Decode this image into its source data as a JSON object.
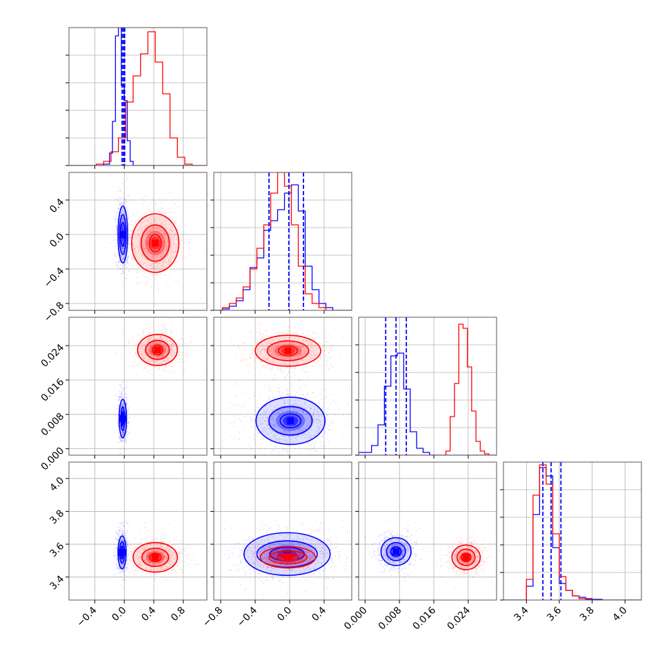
{
  "chart_data": {
    "type": "corner",
    "grid": true,
    "parameters": [
      {
        "ticks": [
          -0.4,
          0.0,
          0.4,
          0.8
        ],
        "tick_labels": [
          "−0.4",
          "0.0",
          "0.4",
          "0.8"
        ],
        "range": [
          -0.75,
          1.12
        ]
      },
      {
        "ticks": [
          -0.8,
          -0.4,
          0.0,
          0.4
        ],
        "tick_labels": [
          "−0.8",
          "−0.4",
          "0.0",
          "0.4"
        ],
        "range": [
          -0.88,
          0.72
        ]
      },
      {
        "ticks": [
          0.0,
          0.008,
          0.016,
          0.024
        ],
        "tick_labels": [
          "0.000",
          "0.008",
          "0.016",
          "0.024"
        ],
        "range": [
          -0.0015,
          0.0306
        ]
      },
      {
        "ticks": [
          3.4,
          3.6,
          3.8,
          4.0
        ],
        "tick_labels": [
          "3.4",
          "3.6",
          "3.8",
          "4.0"
        ],
        "range": [
          3.26,
          4.1
        ]
      }
    ],
    "series": [
      {
        "color": "#0000ff",
        "quantiles": [
          [
            -0.03,
            -0.01,
            0.005
          ],
          [
            -0.24,
            -0.01,
            0.16
          ],
          [
            0.0048,
            0.0072,
            0.0096
          ],
          [
            3.5,
            3.55,
            3.61
          ]
        ],
        "hist_edges": [
          [
            -0.75,
            -0.28,
            -0.2,
            -0.16,
            -0.12,
            -0.08,
            -0.04,
            0.0,
            0.04,
            0.08,
            0.12,
            0.16,
            1.12
          ],
          [
            -0.88,
            -0.78,
            -0.7,
            -0.62,
            -0.54,
            -0.46,
            -0.38,
            -0.3,
            -0.22,
            -0.14,
            -0.06,
            0.02,
            0.1,
            0.18,
            0.26,
            0.34,
            0.42,
            0.5,
            0.72
          ],
          [
            -0.0015,
            0.0015,
            0.003,
            0.0045,
            0.006,
            0.0075,
            0.009,
            0.0105,
            0.012,
            0.0135,
            0.015,
            0.0306
          ],
          [
            3.26,
            3.4,
            3.44,
            3.48,
            3.52,
            3.56,
            3.6,
            3.64,
            3.68,
            3.72,
            3.76,
            3.8,
            3.86,
            4.1
          ]
        ],
        "hist_values": [
          [
            0,
            0.01,
            0.09,
            0.32,
            0.94,
            1.0,
            0.58,
            0.47,
            0.18,
            0.03,
            0.0,
            0
          ],
          [
            0.0,
            0.01,
            0.03,
            0.07,
            0.15,
            0.31,
            0.38,
            0.58,
            0.65,
            0.73,
            0.85,
            0.91,
            0.72,
            0.32,
            0.15,
            0.05,
            0.02,
            0.0
          ],
          [
            0.02,
            0.07,
            0.22,
            0.5,
            0.72,
            0.74,
            0.48,
            0.17,
            0.05,
            0.02,
            0.0
          ],
          [
            0.0,
            0.1,
            0.62,
            0.96,
            0.9,
            0.38,
            0.12,
            0.07,
            0.03,
            0.02,
            0.01,
            0.005,
            0.0
          ]
        ],
        "peaks": [
          [
            0,
            1,
            -0.02,
            0.0
          ],
          [
            0,
            2,
            -0.02,
            0.007
          ],
          [
            0,
            3,
            -0.03,
            3.55
          ],
          [
            1,
            2,
            0.01,
            0.0065
          ],
          [
            1,
            3,
            -0.03,
            3.54
          ],
          [
            2,
            3,
            0.0072,
            3.555
          ]
        ],
        "contour_half_widths": [
          [
            [
              0.03,
              0.14
            ],
            [
              0.045,
              0.23
            ],
            [
              0.065,
              0.33
            ]
          ],
          [
            [
              0.012,
              0.0015
            ],
            [
              0.025,
              0.0028
            ],
            [
              0.05,
              0.0045
            ]
          ],
          [
            [
              0.018,
              0.038
            ],
            [
              0.034,
              0.065
            ],
            [
              0.055,
              0.1
            ]
          ],
          [
            [
              0.12,
              0.0016
            ],
            [
              0.25,
              0.0033
            ],
            [
              0.4,
              0.0055
            ]
          ],
          [
            [
              0.2,
              0.04
            ],
            [
              0.35,
              0.08
            ],
            [
              0.5,
              0.13
            ]
          ],
          [
            [
              0.0012,
              0.028
            ],
            [
              0.0022,
              0.055
            ],
            [
              0.0035,
              0.085
            ]
          ]
        ]
      },
      {
        "color": "#ff0000",
        "quantiles": [],
        "hist_edges": [
          [
            -0.75,
            -0.38,
            -0.28,
            -0.18,
            -0.08,
            0.02,
            0.12,
            0.22,
            0.32,
            0.42,
            0.52,
            0.62,
            0.72,
            0.82,
            0.92,
            1.12
          ],
          [
            -0.88,
            -0.78,
            -0.7,
            -0.62,
            -0.54,
            -0.46,
            -0.38,
            -0.3,
            -0.22,
            -0.14,
            -0.06,
            0.02,
            0.1,
            0.18,
            0.26,
            0.34,
            0.42,
            0.5,
            0.72
          ],
          [
            -0.0015,
            0.0188,
            0.0198,
            0.0208,
            0.0218,
            0.0228,
            0.0238,
            0.0248,
            0.0258,
            0.0268,
            0.0278,
            0.0288,
            0.0306
          ],
          [
            3.26,
            3.4,
            3.44,
            3.48,
            3.52,
            3.56,
            3.6,
            3.64,
            3.68,
            3.72,
            3.76,
            3.8,
            3.86,
            4.1
          ]
        ],
        "hist_values": [
          [
            0,
            0.01,
            0.03,
            0.1,
            0.2,
            0.46,
            0.65,
            0.81,
            0.97,
            0.75,
            0.52,
            0.2,
            0.06,
            0.01,
            0
          ],
          [
            0.0,
            0.02,
            0.05,
            0.09,
            0.17,
            0.3,
            0.45,
            0.62,
            0.85,
            1.0,
            0.9,
            0.62,
            0.32,
            0.12,
            0.05,
            0.02,
            0.0,
            0.0
          ],
          [
            0,
            0.03,
            0.28,
            0.52,
            0.95,
            0.92,
            0.64,
            0.32,
            0.1,
            0.03,
            0.01,
            0
          ],
          [
            0.0,
            0.15,
            0.76,
            0.98,
            0.84,
            0.48,
            0.17,
            0.07,
            0.03,
            0.01,
            0.005,
            0.0,
            0.0
          ]
        ],
        "peaks": [
          [
            0,
            1,
            0.42,
            -0.1
          ],
          [
            0,
            2,
            0.45,
            0.023
          ],
          [
            0,
            3,
            0.42,
            3.52
          ],
          [
            1,
            2,
            -0.02,
            0.0228
          ],
          [
            1,
            3,
            -0.02,
            3.52
          ],
          [
            2,
            3,
            0.0235,
            3.52
          ]
        ],
        "contour_half_widths": [
          [
            [
              0.08,
              0.1
            ],
            [
              0.19,
              0.21
            ],
            [
              0.32,
              0.34
            ]
          ],
          [
            [
              0.07,
              0.0011
            ],
            [
              0.16,
              0.0022
            ],
            [
              0.27,
              0.0036
            ]
          ],
          [
            [
              0.08,
              0.025
            ],
            [
              0.18,
              0.055
            ],
            [
              0.3,
              0.09
            ]
          ],
          [
            [
              0.11,
              0.0011
            ],
            [
              0.24,
              0.0023
            ],
            [
              0.38,
              0.0036
            ]
          ],
          [
            [
              0.12,
              0.02
            ],
            [
              0.22,
              0.04
            ],
            [
              0.32,
              0.065
            ]
          ],
          [
            [
              0.0011,
              0.025
            ],
            [
              0.0021,
              0.05
            ],
            [
              0.0033,
              0.075
            ]
          ]
        ]
      }
    ]
  }
}
